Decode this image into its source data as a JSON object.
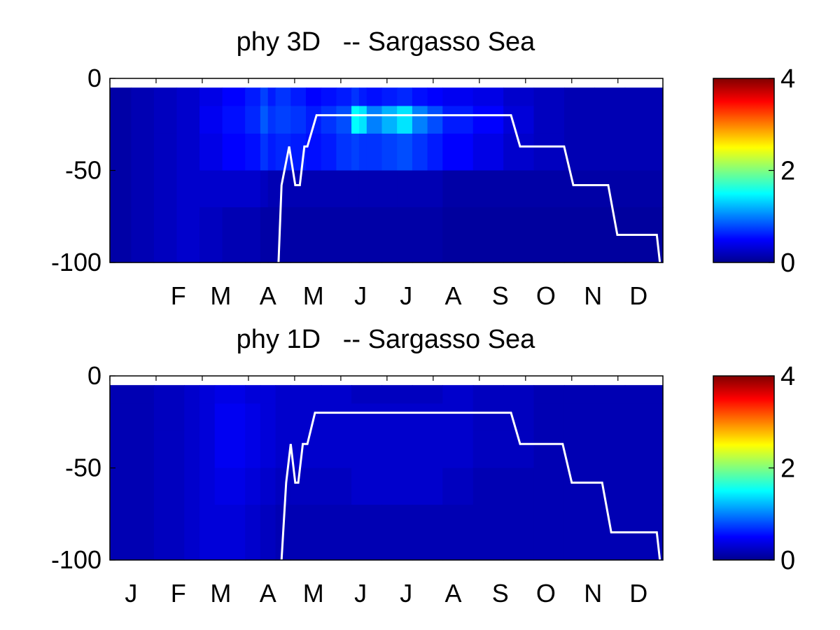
{
  "colors": {
    "mld_line": "#ffffff",
    "colormap": "jet"
  },
  "chart_data": [
    {
      "type": "heatmap",
      "title": "phy 3D   -- Sargasso Sea",
      "xlabel": "",
      "ylabel": "",
      "x_ticks": [
        "F",
        "M",
        "A",
        "M",
        "J",
        "J",
        "A",
        "S",
        "O",
        "N",
        "D"
      ],
      "x_tick_days": [
        46,
        74,
        105,
        135,
        166,
        196,
        227,
        258,
        288,
        319,
        349
      ],
      "xlim": [
        1,
        365
      ],
      "y_ticks": [
        "0",
        "-50",
        "-100"
      ],
      "y_tick_values": [
        0,
        -50,
        -100
      ],
      "ylim": [
        -100,
        0
      ],
      "colorbar_ticks": [
        "4",
        "2",
        "0"
      ],
      "colorbar_tick_values": [
        4,
        2,
        0
      ],
      "clim": [
        0,
        4
      ],
      "depth_bands": [
        [
          -5,
          -15
        ],
        [
          -15,
          -30
        ],
        [
          -30,
          -50
        ],
        [
          -50,
          -70
        ],
        [
          -70,
          -100
        ]
      ],
      "day_bins": [
        1,
        15,
        30,
        45,
        60,
        75,
        90,
        100,
        105,
        110,
        120,
        130,
        140,
        150,
        160,
        165,
        170,
        180,
        190,
        200,
        210,
        220,
        240,
        260,
        280,
        300,
        320,
        340,
        365
      ],
      "values": [
        [
          0.15,
          0.2,
          0.25,
          0.3,
          0.4,
          0.5,
          0.6,
          0.75,
          0.6,
          0.7,
          0.6,
          0.5,
          0.55,
          0.6,
          0.7,
          0.6,
          0.55,
          0.6,
          0.65,
          0.55,
          0.5,
          0.45,
          0.4,
          0.3,
          0.25,
          0.2,
          0.2,
          0.2
        ],
        [
          0.15,
          0.2,
          0.25,
          0.3,
          0.45,
          0.55,
          0.65,
          0.85,
          0.7,
          0.75,
          0.7,
          0.6,
          0.7,
          0.8,
          1.5,
          1.4,
          1.0,
          1.2,
          1.4,
          1.0,
          0.8,
          0.6,
          0.5,
          0.35,
          0.25,
          0.2,
          0.2,
          0.2
        ],
        [
          0.15,
          0.2,
          0.25,
          0.3,
          0.4,
          0.5,
          0.55,
          0.7,
          0.6,
          0.65,
          0.6,
          0.55,
          0.6,
          0.7,
          0.75,
          0.7,
          0.7,
          0.75,
          0.8,
          0.7,
          0.6,
          0.5,
          0.4,
          0.3,
          0.25,
          0.2,
          0.2,
          0.2
        ],
        [
          0.15,
          0.2,
          0.25,
          0.3,
          0.3,
          0.3,
          0.3,
          0.25,
          0.2,
          0.2,
          0.2,
          0.2,
          0.2,
          0.2,
          0.2,
          0.2,
          0.2,
          0.2,
          0.2,
          0.2,
          0.2,
          0.15,
          0.15,
          0.15,
          0.15,
          0.15,
          0.15,
          0.15
        ],
        [
          0.15,
          0.2,
          0.25,
          0.3,
          0.25,
          0.2,
          0.2,
          0.15,
          0.15,
          0.15,
          0.15,
          0.15,
          0.15,
          0.15,
          0.15,
          0.15,
          0.15,
          0.15,
          0.15,
          0.15,
          0.15,
          0.12,
          0.12,
          0.12,
          0.12,
          0.12,
          0.12,
          0.12
        ]
      ],
      "mixed_layer_depth": {
        "x": [
          112,
          114,
          119,
          123,
          126,
          129,
          131,
          137,
          265,
          271,
          300,
          306,
          329,
          335,
          361,
          363
        ],
        "y": [
          -100,
          -58,
          -37,
          -58,
          -58,
          -37,
          -37,
          -20,
          -20,
          -37,
          -37,
          -58,
          -58,
          -85,
          -85,
          -100
        ]
      }
    },
    {
      "type": "heatmap",
      "title": "phy 1D   -- Sargasso Sea",
      "xlabel": "",
      "ylabel": "",
      "x_ticks": [
        "J",
        "F",
        "M",
        "A",
        "M",
        "J",
        "J",
        "A",
        "S",
        "O",
        "N",
        "D"
      ],
      "x_tick_days": [
        15,
        46,
        74,
        105,
        135,
        166,
        196,
        227,
        258,
        288,
        319,
        349
      ],
      "xlim": [
        1,
        365
      ],
      "y_ticks": [
        "0",
        "-50",
        "-100"
      ],
      "y_tick_values": [
        0,
        -50,
        -100
      ],
      "ylim": [
        -100,
        0
      ],
      "colorbar_ticks": [
        "4",
        "2",
        "0"
      ],
      "colorbar_tick_values": [
        4,
        2,
        0
      ],
      "clim": [
        0,
        4
      ],
      "depth_bands": [
        [
          -5,
          -15
        ],
        [
          -15,
          -30
        ],
        [
          -30,
          -50
        ],
        [
          -50,
          -70
        ],
        [
          -70,
          -100
        ]
      ],
      "day_bins": [
        1,
        30,
        50,
        60,
        70,
        80,
        90,
        100,
        110,
        120,
        140,
        160,
        180,
        200,
        220,
        240,
        260,
        280,
        300,
        320,
        340,
        365
      ],
      "values": [
        [
          0.2,
          0.25,
          0.3,
          0.35,
          0.4,
          0.4,
          0.35,
          0.35,
          0.3,
          0.3,
          0.3,
          0.25,
          0.25,
          0.25,
          0.3,
          0.25,
          0.25,
          0.2,
          0.2,
          0.2,
          0.2
        ],
        [
          0.2,
          0.25,
          0.3,
          0.35,
          0.45,
          0.45,
          0.4,
          0.35,
          0.3,
          0.3,
          0.3,
          0.3,
          0.3,
          0.3,
          0.3,
          0.25,
          0.25,
          0.2,
          0.2,
          0.2,
          0.2
        ],
        [
          0.2,
          0.25,
          0.3,
          0.35,
          0.45,
          0.45,
          0.4,
          0.35,
          0.3,
          0.3,
          0.3,
          0.3,
          0.3,
          0.3,
          0.3,
          0.25,
          0.25,
          0.2,
          0.2,
          0.2,
          0.2
        ],
        [
          0.2,
          0.25,
          0.3,
          0.35,
          0.4,
          0.4,
          0.35,
          0.3,
          0.25,
          0.25,
          0.25,
          0.3,
          0.3,
          0.3,
          0.25,
          0.2,
          0.2,
          0.2,
          0.2,
          0.2,
          0.2
        ],
        [
          0.2,
          0.25,
          0.3,
          0.35,
          0.35,
          0.35,
          0.3,
          0.25,
          0.2,
          0.2,
          0.2,
          0.2,
          0.2,
          0.2,
          0.2,
          0.2,
          0.2,
          0.2,
          0.2,
          0.2,
          0.2
        ]
      ],
      "mixed_layer_depth": {
        "x": [
          114,
          117,
          120,
          123,
          125,
          128,
          131,
          136,
          265,
          271,
          299,
          305,
          325,
          331,
          361,
          363
        ],
        "y": [
          -100,
          -58,
          -37,
          -58,
          -58,
          -37,
          -37,
          -20,
          -20,
          -37,
          -37,
          -58,
          -58,
          -85,
          -85,
          -100
        ]
      }
    }
  ]
}
